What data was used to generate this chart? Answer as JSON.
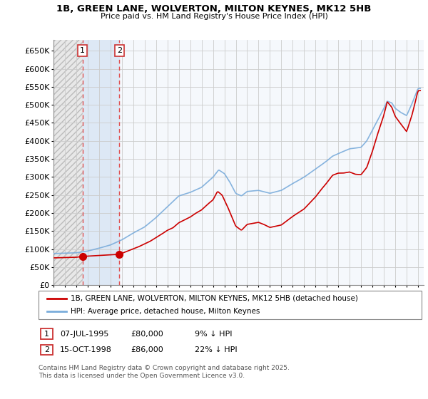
{
  "title": "1B, GREEN LANE, WOLVERTON, MILTON KEYNES, MK12 5HB",
  "subtitle": "Price paid vs. HM Land Registry's House Price Index (HPI)",
  "ylim": [
    0,
    680000
  ],
  "yticks": [
    0,
    50000,
    100000,
    150000,
    200000,
    250000,
    300000,
    350000,
    400000,
    450000,
    500000,
    550000,
    600000,
    650000
  ],
  "ytick_labels": [
    "£0",
    "£50K",
    "£100K",
    "£150K",
    "£200K",
    "£250K",
    "£300K",
    "£350K",
    "£400K",
    "£450K",
    "£500K",
    "£550K",
    "£600K",
    "£650K"
  ],
  "legend1": "1B, GREEN LANE, WOLVERTON, MILTON KEYNES, MK12 5HB (detached house)",
  "legend2": "HPI: Average price, detached house, Milton Keynes",
  "sale1_x": 1995.54,
  "sale1_price": 80000,
  "sale2_x": 1998.79,
  "sale2_price": 86000,
  "sale1_date": "07-JUL-1995",
  "sale2_date": "15-OCT-1998",
  "sale1_pct": "9% ↓ HPI",
  "sale2_pct": "22% ↓ HPI",
  "footnote": "Contains HM Land Registry data © Crown copyright and database right 2025.\nThis data is licensed under the Open Government Licence v3.0.",
  "line_color_red": "#cc0000",
  "line_color_blue": "#7aacdb",
  "grid_color": "#cccccc",
  "plot_bg": "#f5f5f5",
  "hatch_bg": "#e8e8e8",
  "between_fill": "#dde8f5",
  "xlim_left": 1993.0,
  "xlim_right": 2025.5
}
